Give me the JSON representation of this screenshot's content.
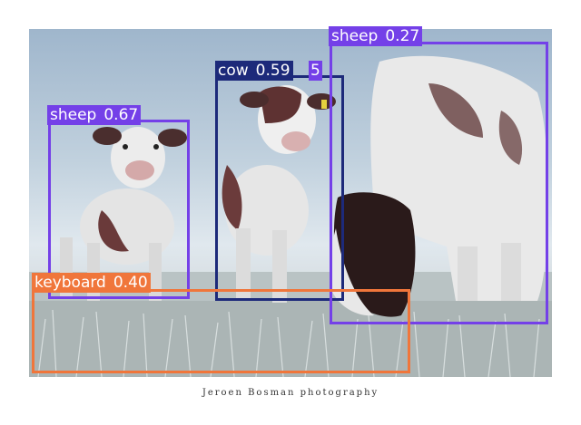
{
  "caption": "Jeroen Bosman photography",
  "colors": {
    "sheep": "#7440e8",
    "cow": "#1d2a7a",
    "keyboard": "#f0763b"
  },
  "detections": [
    {
      "label": "sheep",
      "score": "0.67"
    },
    {
      "label": "cow",
      "score": "0.59"
    },
    {
      "label": "sheep",
      "score": "0.27"
    },
    {
      "label": "keyboard",
      "score": "0.40"
    }
  ],
  "hidden_tag_fragment": "5"
}
